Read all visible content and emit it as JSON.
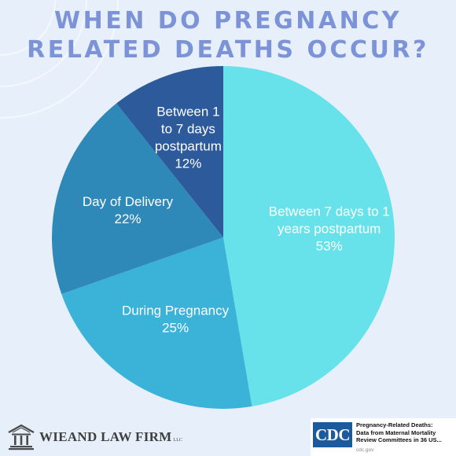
{
  "title_line1": "WHEN DO PREGNANCY",
  "title_line2": "RELATED DEATHS OCCUR?",
  "colors": {
    "background": "#e7f0fa",
    "title": "#7c93d8",
    "slice_postpartum_long": "#67e2ea",
    "slice_pregnancy": "#3bb3d9",
    "slice_delivery": "#2e88b8",
    "slice_postpartum_short": "#2c5a9a"
  },
  "chart_data": {
    "type": "pie",
    "slices": [
      {
        "label": [
          "Between 7 days to 1",
          "years postpartum"
        ],
        "value": 53,
        "value_label": "53%",
        "color": "#67e2ea"
      },
      {
        "label": [
          "During Pregnancy"
        ],
        "value": 25,
        "value_label": "25%",
        "color": "#3bb3d9"
      },
      {
        "label": [
          "Day of Delivery"
        ],
        "value": 22,
        "value_label": "22%",
        "color": "#2e88b8"
      },
      {
        "label": [
          "Between 1",
          "to 7 days",
          "postpartum"
        ],
        "value": 12,
        "value_label": "12%",
        "color": "#2c5a9a"
      }
    ]
  },
  "firm": {
    "name": "WIEAND LAW FIRM",
    "suffix": "LLC",
    "logo_icon": "courthouse-icon"
  },
  "source_card": {
    "logo_text": "CDC",
    "title": "Pregnancy-Related Deaths:\nData from Maternal Mortality\nReview Committees in 36 US...",
    "domain": "cdc.gov"
  }
}
